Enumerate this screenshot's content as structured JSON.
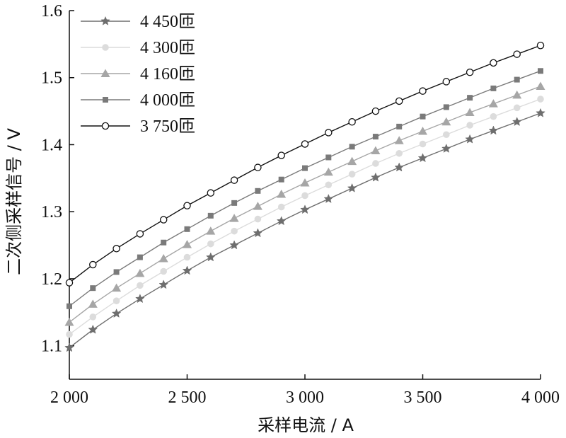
{
  "chart_data": {
    "type": "line",
    "xlabel": "采样电流 / A",
    "ylabel": "二次侧采样信号 / V",
    "xlim": [
      2000,
      4000
    ],
    "ylim": [
      1.05,
      1.6
    ],
    "x_ticks": [
      2000,
      2500,
      3000,
      3500,
      4000
    ],
    "x_tick_labels": [
      "2 000",
      "2 500",
      "3 000",
      "3 500",
      "4 000"
    ],
    "y_ticks": [
      1.1,
      1.2,
      1.3,
      1.4,
      1.5,
      1.6
    ],
    "y_tick_labels": [
      "1.1",
      "1.2",
      "1.3",
      "1.4",
      "1.5",
      "1.6"
    ],
    "grid": false,
    "legend_position": "top-left",
    "x": [
      2000,
      2100,
      2200,
      2300,
      2400,
      2500,
      2600,
      2700,
      2800,
      2900,
      3000,
      3100,
      3200,
      3300,
      3400,
      3500,
      3600,
      3700,
      3800,
      3900,
      4000
    ],
    "series": [
      {
        "name": "4 450匝",
        "marker": "star",
        "color": "#6e6e6e",
        "values": [
          1.097,
          1.124,
          1.148,
          1.17,
          1.191,
          1.212,
          1.232,
          1.25,
          1.268,
          1.286,
          1.303,
          1.319,
          1.335,
          1.351,
          1.366,
          1.38,
          1.394,
          1.408,
          1.421,
          1.434,
          1.447
        ]
      },
      {
        "name": "4 300匝",
        "marker": "circle-filled",
        "color": "#dcdcdc",
        "values": [
          1.117,
          1.143,
          1.167,
          1.19,
          1.211,
          1.232,
          1.252,
          1.271,
          1.289,
          1.307,
          1.324,
          1.34,
          1.356,
          1.372,
          1.387,
          1.401,
          1.415,
          1.429,
          1.442,
          1.455,
          1.468
        ]
      },
      {
        "name": "4 160匝",
        "marker": "triangle",
        "color": "#a6a6a6",
        "values": [
          1.135,
          1.162,
          1.186,
          1.208,
          1.23,
          1.251,
          1.271,
          1.29,
          1.308,
          1.326,
          1.343,
          1.359,
          1.375,
          1.391,
          1.406,
          1.42,
          1.434,
          1.448,
          1.461,
          1.474,
          1.487
        ]
      },
      {
        "name": "4 000匝",
        "marker": "square",
        "color": "#7a7a7a",
        "values": [
          1.159,
          1.186,
          1.21,
          1.232,
          1.254,
          1.274,
          1.294,
          1.313,
          1.331,
          1.348,
          1.365,
          1.381,
          1.397,
          1.412,
          1.427,
          1.442,
          1.456,
          1.47,
          1.484,
          1.497,
          1.51
        ]
      },
      {
        "name": "3 750匝",
        "marker": "circle-open",
        "color": "#111111",
        "values": [
          1.194,
          1.221,
          1.245,
          1.267,
          1.288,
          1.309,
          1.328,
          1.347,
          1.366,
          1.384,
          1.401,
          1.418,
          1.434,
          1.45,
          1.465,
          1.48,
          1.494,
          1.508,
          1.522,
          1.535,
          1.548
        ]
      }
    ]
  }
}
